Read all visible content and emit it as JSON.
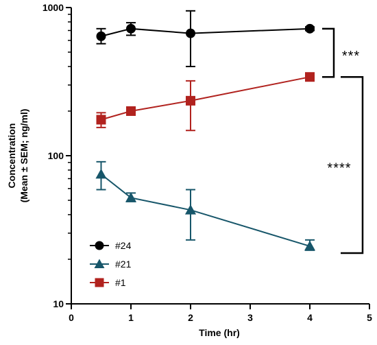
{
  "chart_data": {
    "type": "line",
    "xlabel": "Time (hr)",
    "ylabel_line1": "Concentration",
    "ylabel_line2": "(Mean ± SEM; ng/ml)",
    "xlim": [
      0,
      5
    ],
    "ylim": [
      10,
      1000
    ],
    "yscale": "log",
    "xticks": [
      "0",
      "1",
      "2",
      "3",
      "4",
      "5"
    ],
    "yticks": [
      "10",
      "100",
      "1000"
    ],
    "grid": false,
    "legend_position": "bottom-left",
    "series": [
      {
        "name": "#24",
        "marker": "circle",
        "color": "#000000",
        "x": [
          0.5,
          1,
          2,
          4
        ],
        "y": [
          640,
          720,
          670,
          720
        ],
        "err_low": [
          570,
          650,
          400,
          700
        ],
        "err_high": [
          720,
          790,
          950,
          740
        ]
      },
      {
        "name": "#21",
        "marker": "triangle",
        "color": "#17566a",
        "x": [
          0.5,
          1,
          2,
          4
        ],
        "y": [
          75,
          52,
          43,
          24.5
        ],
        "err_low": [
          59,
          49,
          27,
          23
        ],
        "err_high": [
          91,
          56,
          59,
          27
        ]
      },
      {
        "name": "#1",
        "marker": "square",
        "color": "#b1221e",
        "x": [
          0.5,
          1,
          2,
          4
        ],
        "y": [
          175,
          200,
          235,
          340
        ],
        "err_low": [
          155,
          194,
          148,
          330
        ],
        "err_high": [
          195,
          206,
          320,
          350
        ]
      }
    ],
    "significance": [
      {
        "label": "***",
        "from": 720,
        "to": 340
      },
      {
        "label": "****",
        "from": 340,
        "to": 22
      }
    ]
  }
}
